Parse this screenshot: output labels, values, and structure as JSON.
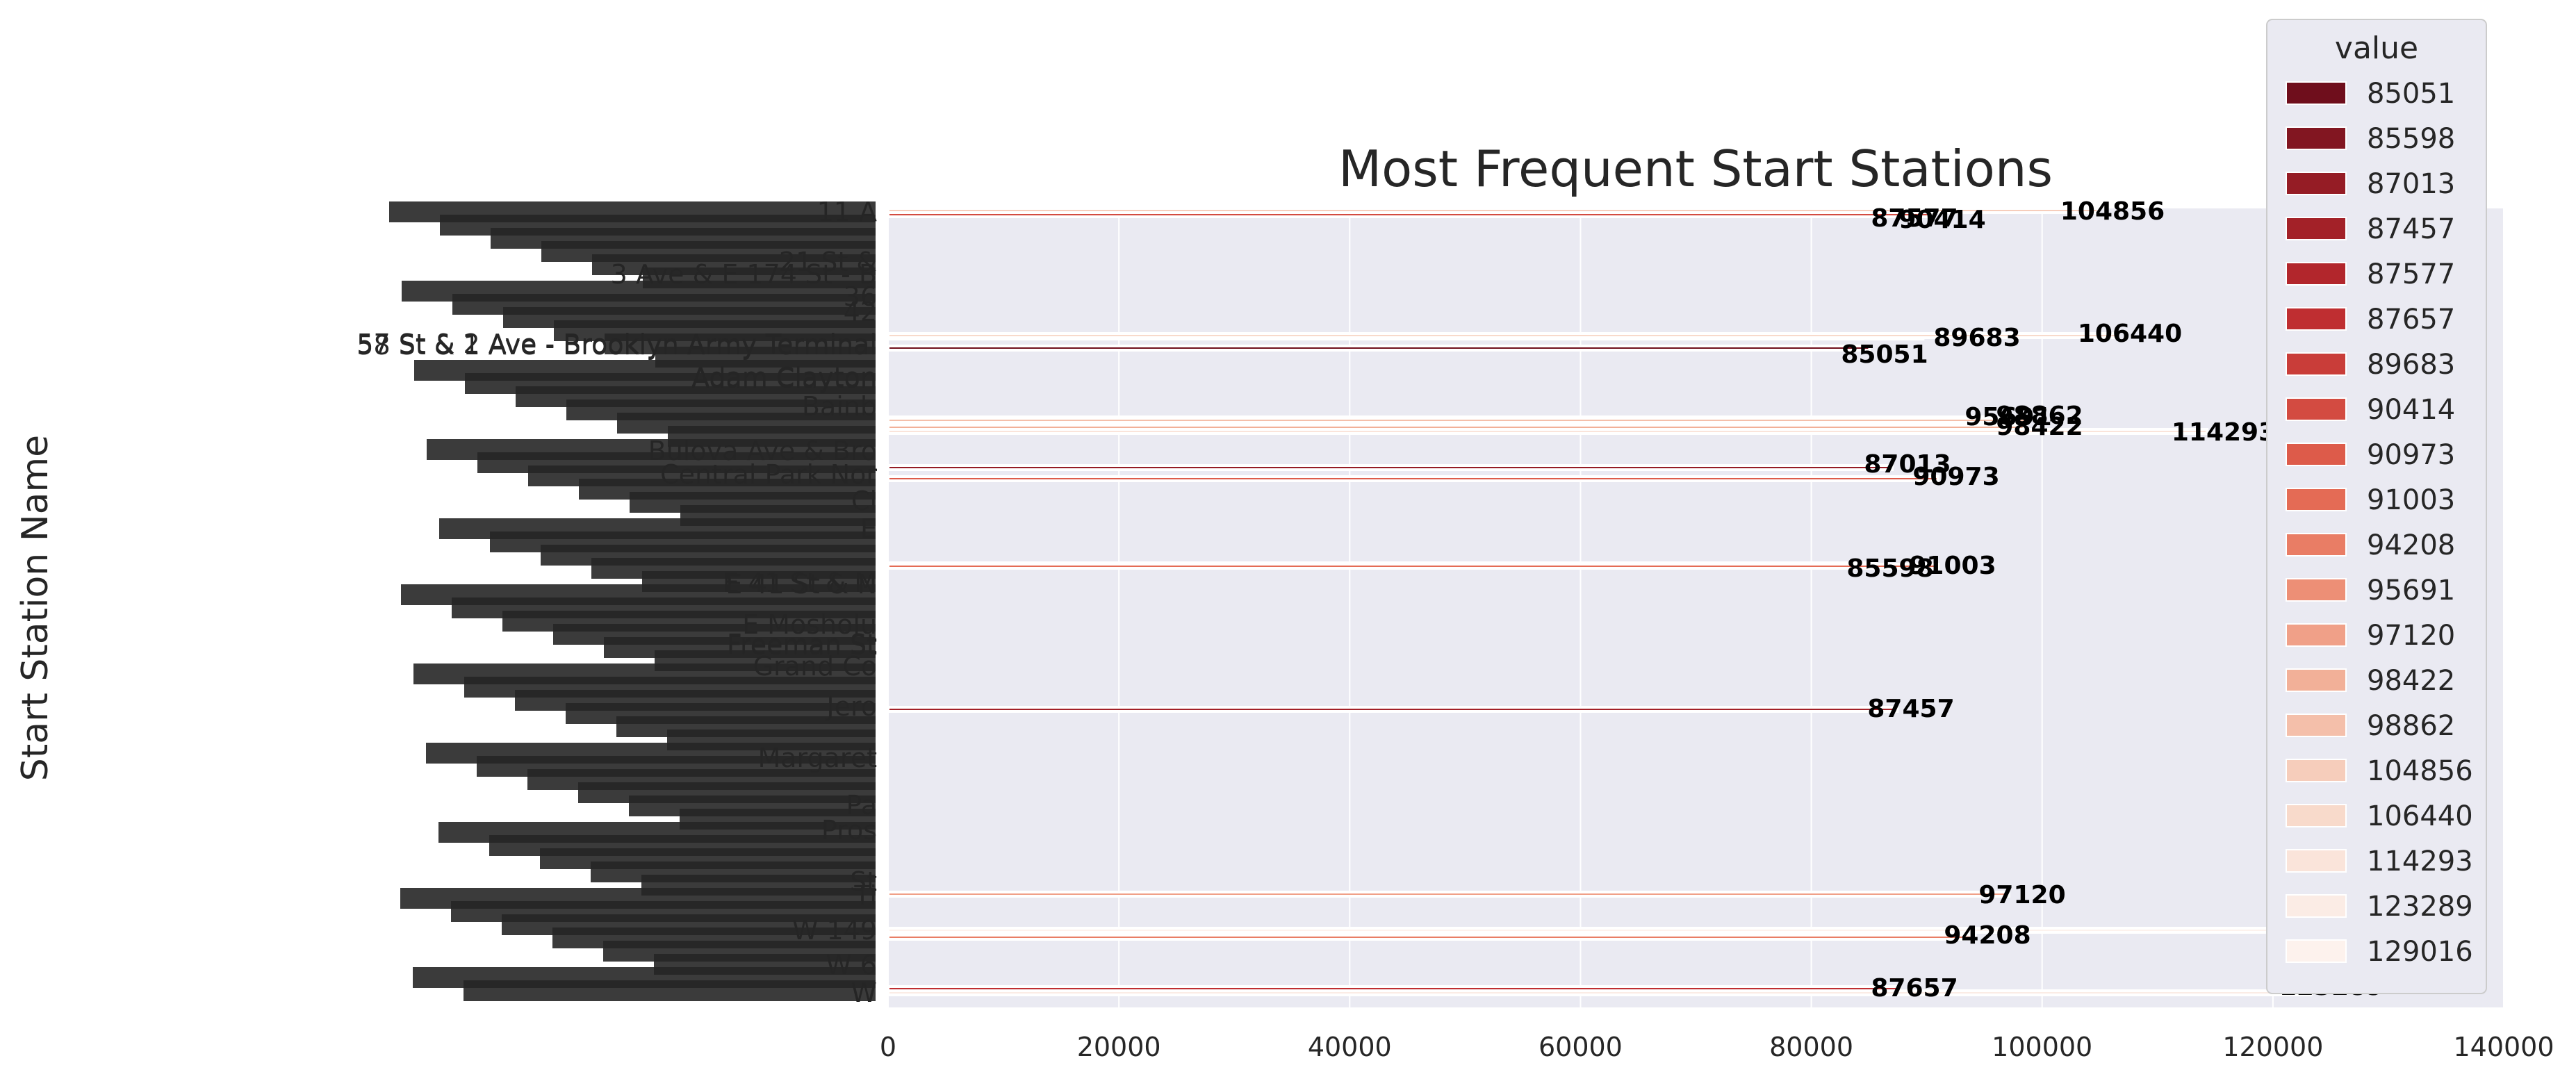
{
  "chart_data": {
    "type": "bar",
    "orientation": "horizontal",
    "title": "Most Frequent Start Stations",
    "xlabel": "",
    "ylabel": "Start Station Name",
    "xlim": [
      0,
      140000
    ],
    "x_ticks": [
      "0",
      "20000",
      "40000",
      "60000",
      "80000",
      "100000",
      "120000",
      "140000"
    ],
    "grid": true,
    "legend": {
      "title": "value",
      "placement": "top-right",
      "entries": [
        {
          "label": "85051",
          "color": "#6f0e1c"
        },
        {
          "label": "85598",
          "color": "#821621"
        },
        {
          "label": "87013",
          "color": "#951c25"
        },
        {
          "label": "87457",
          "color": "#a32128"
        },
        {
          "label": "87577",
          "color": "#b2262c"
        },
        {
          "label": "87657",
          "color": "#bf2e31"
        },
        {
          "label": "89683",
          "color": "#c93d39"
        },
        {
          "label": "90414",
          "color": "#d34b41"
        },
        {
          "label": "90973",
          "color": "#dd5b4a"
        },
        {
          "label": "91003",
          "color": "#e46b55"
        },
        {
          "label": "94208",
          "color": "#e97d65"
        },
        {
          "label": "95691",
          "color": "#ed8f76"
        },
        {
          "label": "97120",
          "color": "#f0a088"
        },
        {
          "label": "98422",
          "color": "#f2b098"
        },
        {
          "label": "98862",
          "color": "#f4bfaa"
        },
        {
          "label": "104856",
          "color": "#f6cdbb"
        },
        {
          "label": "106440",
          "color": "#f8dacb"
        },
        {
          "label": "114293",
          "color": "#fae4da"
        },
        {
          "label": "123289",
          "color": "#fbece5"
        },
        {
          "label": "129016",
          "color": "#fdf2ed"
        }
      ]
    },
    "visible_category_labels": [
      "11 A",
      "21 St &",
      "3 Ave & E 174 St - B",
      "36",
      "42",
      "57 St & 2 Ave - Brooklyn Army Terminal",
      "58 St & 1 Ave - Brooklyn Army Terminal",
      "Adam Clayton",
      "Adam Clayton",
      "Bainb",
      "Bulova Ave & Bro",
      "Central Park Nor",
      "Cl",
      "E",
      "E 41 St & M",
      "E 41 St & N",
      "E Mosholu",
      "Freeman St",
      "Freeman St",
      "Grand Co",
      "Jero",
      "Margaret",
      "Pa",
      "Pros",
      "St",
      "Ti",
      "W 149",
      "W 6",
      "W"
    ],
    "bars": [
      {
        "value": 87577
      },
      {
        "value": 90414
      },
      {
        "value": 104856
      },
      {
        "value": 89683
      },
      {
        "value": 106440
      },
      {
        "value": 85051
      },
      {
        "value": 95691
      },
      {
        "value": 98862
      },
      {
        "value": 98422
      },
      {
        "value": 114293
      },
      {
        "value": 87013
      },
      {
        "value": 90973
      },
      {
        "value": 85598
      },
      {
        "value": 91003
      },
      {
        "value": 87457
      },
      {
        "value": 97120
      },
      {
        "value": 129016
      },
      {
        "value": 94208
      },
      {
        "value": 87657
      },
      {
        "value": 123289
      }
    ]
  }
}
